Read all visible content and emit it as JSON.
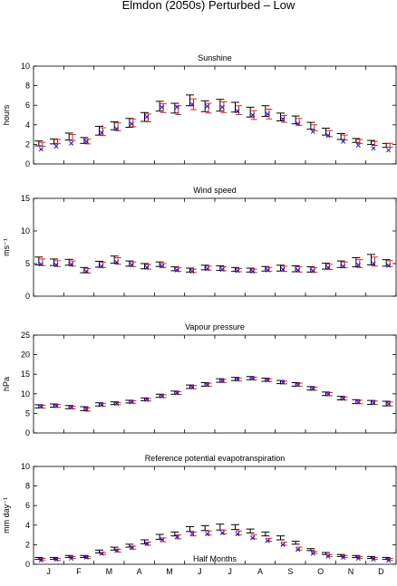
{
  "figure": {
    "title": "Elmdon (2050s) Perturbed – Low",
    "xlabel": "Half Months"
  },
  "month_labels": [
    "J",
    "F",
    "M",
    "A",
    "M",
    "J",
    "J",
    "A",
    "S",
    "O",
    "N",
    "D"
  ],
  "colors": {
    "black": "#000000",
    "red": "#e8202a",
    "blue": "#1a1acc"
  },
  "chart_data": [
    {
      "type": "scatter",
      "title": "Sunshine",
      "ylabel": "hours",
      "ylim": [
        0,
        10
      ],
      "yticks": [
        0,
        2,
        4,
        6,
        8,
        10
      ],
      "x": [
        1,
        2,
        3,
        4,
        5,
        6,
        7,
        8,
        9,
        10,
        11,
        12,
        13,
        14,
        15,
        16,
        17,
        18,
        19,
        20,
        21,
        22,
        23,
        24
      ],
      "series": [
        {
          "color": "black",
          "marker": "errorbar",
          "values": [
            2.1,
            2.3,
            2.8,
            2.4,
            3.4,
            3.9,
            4.2,
            4.8,
            5.9,
            5.7,
            6.5,
            5.9,
            6.0,
            5.8,
            5.3,
            5.4,
            4.8,
            4.5,
            3.9,
            3.3,
            2.8,
            2.4,
            2.2,
            1.9
          ],
          "errors": [
            0.25,
            0.25,
            0.35,
            0.3,
            0.45,
            0.4,
            0.45,
            0.45,
            0.5,
            0.5,
            0.55,
            0.55,
            0.6,
            0.5,
            0.5,
            0.55,
            0.4,
            0.4,
            0.35,
            0.35,
            0.3,
            0.2,
            0.2,
            0.2
          ]
        },
        {
          "color": "red",
          "marker": "errorbar",
          "values": [
            2.0,
            2.3,
            2.7,
            2.3,
            3.3,
            3.8,
            4.2,
            4.7,
            5.7,
            5.5,
            6.1,
            5.7,
            5.8,
            5.5,
            5.0,
            5.1,
            4.6,
            4.3,
            3.7,
            3.1,
            2.7,
            2.3,
            2.1,
            1.9
          ],
          "errors": [
            0.2,
            0.2,
            0.3,
            0.25,
            0.4,
            0.4,
            0.4,
            0.4,
            0.45,
            0.45,
            0.55,
            0.5,
            0.55,
            0.45,
            0.45,
            0.5,
            0.35,
            0.35,
            0.3,
            0.3,
            0.25,
            0.2,
            0.2,
            0.2
          ]
        },
        {
          "color": "blue",
          "marker": "x",
          "values": [
            1.5,
            1.8,
            2.1,
            2.3,
            3.2,
            3.6,
            4.1,
            4.8,
            5.8,
            5.8,
            6.1,
            5.9,
            5.8,
            5.4,
            5.0,
            5.1,
            4.6,
            4.1,
            3.3,
            2.9,
            2.3,
            1.9,
            1.6,
            1.4
          ]
        }
      ]
    },
    {
      "type": "scatter",
      "title": "Wind speed",
      "ylabel": "ms⁻¹",
      "ylim": [
        0,
        15
      ],
      "yticks": [
        0,
        5,
        10,
        15
      ],
      "x": [
        1,
        2,
        3,
        4,
        5,
        6,
        7,
        8,
        9,
        10,
        11,
        12,
        13,
        14,
        15,
        16,
        17,
        18,
        19,
        20,
        21,
        22,
        23,
        24
      ],
      "series": [
        {
          "color": "black",
          "marker": "errorbar",
          "values": [
            5.4,
            5.2,
            5.2,
            4.0,
            4.9,
            5.6,
            5.0,
            4.6,
            4.9,
            4.2,
            4.0,
            4.4,
            4.3,
            4.1,
            4.0,
            4.2,
            4.3,
            4.2,
            4.1,
            4.6,
            4.9,
            5.2,
            5.6,
            5.1
          ],
          "errors": [
            0.6,
            0.5,
            0.45,
            0.4,
            0.45,
            0.55,
            0.4,
            0.4,
            0.35,
            0.3,
            0.3,
            0.35,
            0.35,
            0.3,
            0.3,
            0.35,
            0.45,
            0.45,
            0.4,
            0.45,
            0.5,
            0.7,
            0.8,
            0.5
          ]
        },
        {
          "color": "red",
          "marker": "errorbar",
          "values": [
            5.2,
            5.0,
            5.0,
            3.9,
            4.8,
            5.4,
            4.9,
            4.5,
            4.7,
            4.1,
            3.9,
            4.3,
            4.2,
            4.0,
            3.9,
            4.1,
            4.2,
            4.1,
            4.0,
            4.5,
            4.8,
            5.0,
            5.3,
            5.0
          ],
          "errors": [
            0.5,
            0.45,
            0.4,
            0.35,
            0.4,
            0.5,
            0.35,
            0.35,
            0.3,
            0.3,
            0.25,
            0.3,
            0.3,
            0.25,
            0.25,
            0.3,
            0.4,
            0.4,
            0.35,
            0.4,
            0.45,
            0.6,
            0.7,
            0.45
          ]
        },
        {
          "color": "blue",
          "marker": "x",
          "values": [
            4.9,
            4.8,
            4.9,
            3.8,
            4.6,
            5.2,
            4.8,
            4.4,
            4.6,
            4.0,
            3.8,
            4.2,
            4.1,
            3.9,
            3.8,
            4.0,
            4.1,
            4.0,
            3.9,
            4.4,
            4.6,
            4.8,
            5.0,
            4.7
          ]
        }
      ]
    },
    {
      "type": "scatter",
      "title": "Vapour pressure",
      "ylabel": "hPa",
      "ylim": [
        0,
        25
      ],
      "yticks": [
        0,
        5,
        10,
        15,
        20,
        25
      ],
      "x": [
        1,
        2,
        3,
        4,
        5,
        6,
        7,
        8,
        9,
        10,
        11,
        12,
        13,
        14,
        15,
        16,
        17,
        18,
        19,
        20,
        21,
        22,
        23,
        24
      ],
      "series": [
        {
          "color": "black",
          "marker": "errorbar",
          "values": [
            6.8,
            7.0,
            6.6,
            6.2,
            7.3,
            7.6,
            8.0,
            8.6,
            9.5,
            10.3,
            11.8,
            12.4,
            13.4,
            13.8,
            14.0,
            13.6,
            13.0,
            12.4,
            11.4,
            10.0,
            8.9,
            8.0,
            7.8,
            7.5
          ],
          "errors": [
            0.4,
            0.4,
            0.4,
            0.5,
            0.4,
            0.35,
            0.35,
            0.35,
            0.4,
            0.4,
            0.45,
            0.45,
            0.45,
            0.4,
            0.4,
            0.4,
            0.4,
            0.45,
            0.45,
            0.45,
            0.45,
            0.5,
            0.5,
            0.6
          ]
        },
        {
          "color": "red",
          "marker": "errorbar",
          "values": [
            6.7,
            6.9,
            6.5,
            6.0,
            7.2,
            7.5,
            7.9,
            8.5,
            9.4,
            10.2,
            11.7,
            12.3,
            13.3,
            13.7,
            13.9,
            13.5,
            12.9,
            12.3,
            11.3,
            9.9,
            8.8,
            7.9,
            7.7,
            7.4
          ],
          "errors": [
            0.35,
            0.35,
            0.35,
            0.45,
            0.35,
            0.3,
            0.3,
            0.3,
            0.35,
            0.35,
            0.4,
            0.4,
            0.4,
            0.35,
            0.35,
            0.35,
            0.35,
            0.4,
            0.4,
            0.4,
            0.4,
            0.45,
            0.45,
            0.5
          ]
        },
        {
          "color": "blue",
          "marker": "x",
          "values": [
            6.8,
            6.9,
            6.6,
            6.1,
            7.2,
            7.5,
            7.9,
            8.5,
            9.4,
            10.2,
            11.7,
            12.3,
            13.3,
            13.7,
            13.9,
            13.5,
            12.9,
            12.3,
            11.3,
            9.9,
            8.8,
            7.9,
            7.7,
            7.4
          ]
        }
      ]
    },
    {
      "type": "scatter",
      "title": "Reference potential evapotranspiration",
      "ylabel": "mm day⁻¹",
      "ylim": [
        0,
        10
      ],
      "yticks": [
        0,
        2,
        4,
        6,
        8,
        10
      ],
      "x": [
        1,
        2,
        3,
        4,
        5,
        6,
        7,
        8,
        9,
        10,
        11,
        12,
        13,
        14,
        15,
        16,
        17,
        18,
        19,
        20,
        21,
        22,
        23,
        24
      ],
      "series": [
        {
          "color": "black",
          "marker": "errorbar",
          "values": [
            0.6,
            0.6,
            0.8,
            0.8,
            1.3,
            1.6,
            1.9,
            2.3,
            2.8,
            3.1,
            3.6,
            3.7,
            3.8,
            3.8,
            3.4,
            3.1,
            2.7,
            2.2,
            1.5,
            1.1,
            0.9,
            0.8,
            0.7,
            0.6
          ],
          "errors": [
            0.1,
            0.1,
            0.1,
            0.1,
            0.15,
            0.15,
            0.15,
            0.2,
            0.25,
            0.2,
            0.25,
            0.25,
            0.3,
            0.25,
            0.2,
            0.2,
            0.2,
            0.15,
            0.1,
            0.1,
            0.1,
            0.1,
            0.1,
            0.1
          ]
        },
        {
          "color": "red",
          "marker": "errorbar",
          "values": [
            0.5,
            0.5,
            0.7,
            0.7,
            1.1,
            1.4,
            1.7,
            2.1,
            2.5,
            2.8,
            3.1,
            3.2,
            3.3,
            3.2,
            2.8,
            2.5,
            2.1,
            1.6,
            1.2,
            0.9,
            0.8,
            0.7,
            0.6,
            0.5
          ],
          "errors": [
            0.1,
            0.1,
            0.1,
            0.1,
            0.1,
            0.15,
            0.15,
            0.15,
            0.2,
            0.2,
            0.2,
            0.2,
            0.2,
            0.2,
            0.2,
            0.15,
            0.15,
            0.15,
            0.1,
            0.1,
            0.1,
            0.1,
            0.1,
            0.1
          ]
        },
        {
          "color": "blue",
          "marker": "x",
          "values": [
            0.4,
            0.5,
            0.6,
            0.7,
            1.1,
            1.4,
            1.7,
            2.1,
            2.5,
            2.8,
            3.1,
            3.1,
            3.2,
            3.1,
            2.7,
            2.4,
            2.0,
            1.5,
            1.1,
            0.8,
            0.7,
            0.6,
            0.5,
            0.4
          ]
        }
      ]
    }
  ]
}
